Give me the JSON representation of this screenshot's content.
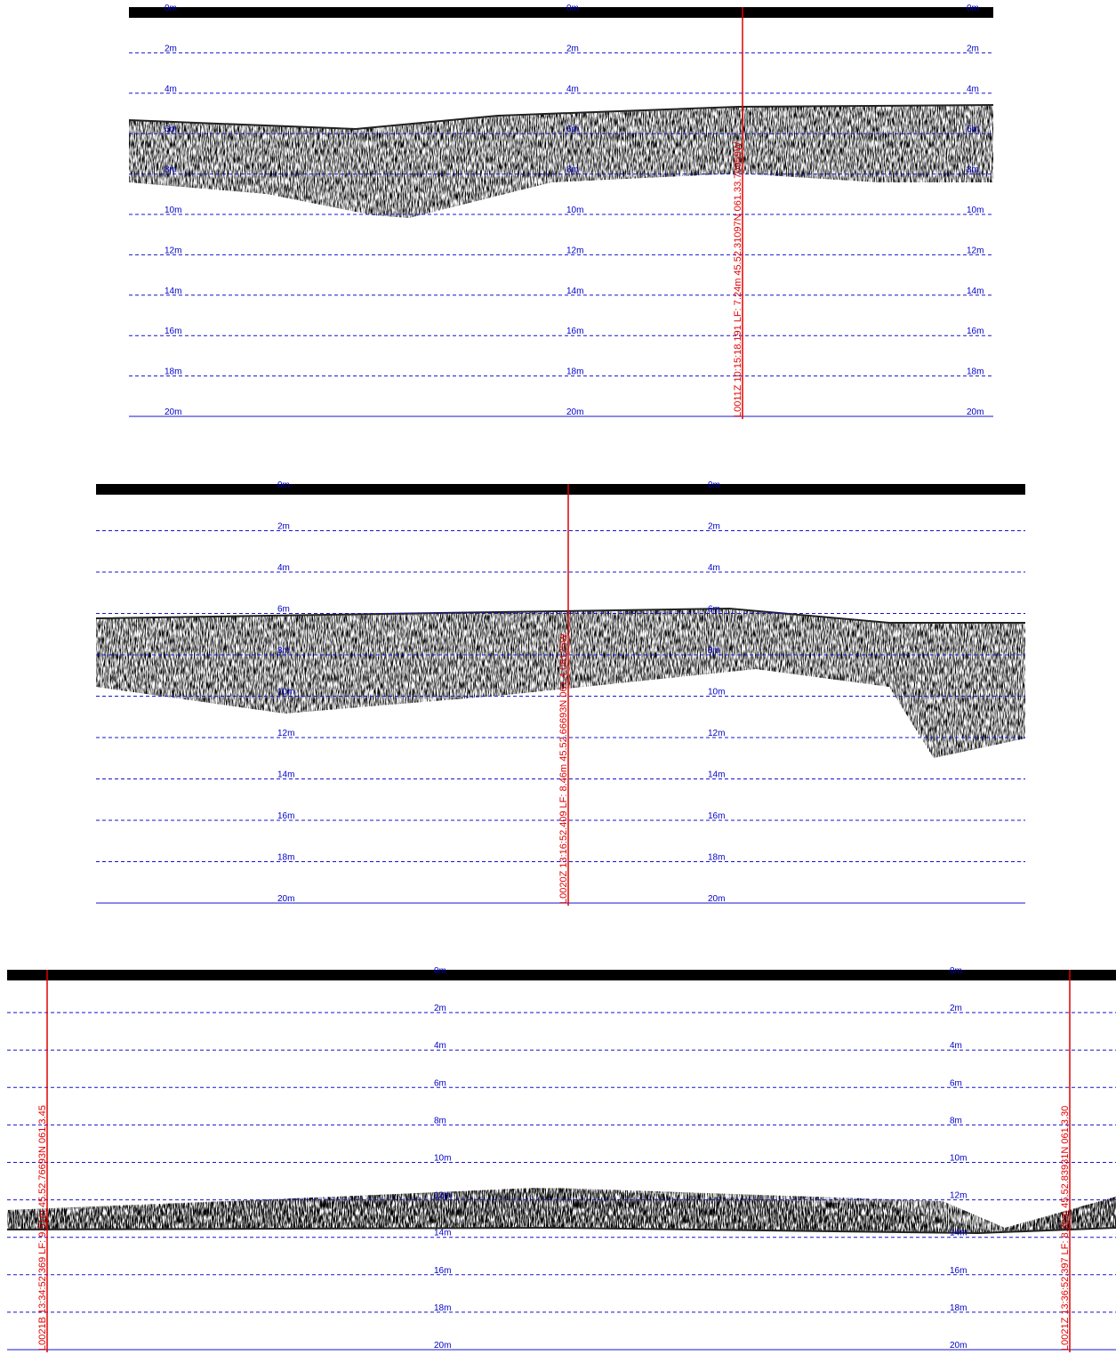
{
  "depth_labels": [
    "0m",
    "2m",
    "4m",
    "6m",
    "8m",
    "10m",
    "12m",
    "14m",
    "16m",
    "18m",
    "20m"
  ],
  "panels": [
    {
      "markers": [
        "L0011Z 10:15:18.191 LF: 7.24m 45.52.31097N 061.33.70959W"
      ]
    },
    {
      "markers": [
        "L0020Z 13:16:52.409 LF: 8.46m 45.52.66693N 061.4.08125W"
      ]
    },
    {
      "markers": [
        "L0021B 13:34:52.369 LF: 9.51m 45.52.76693N 061.3.45",
        "L0021Z 13:36:52.397 LF: 8.30m 45.52.83931N 061.3.30"
      ]
    }
  ]
}
